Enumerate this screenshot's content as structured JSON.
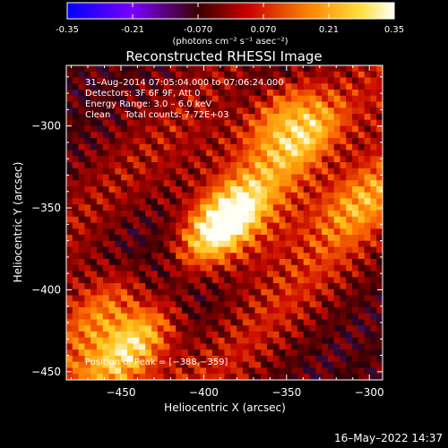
{
  "chart_data": {
    "type": "heatmap",
    "title": "Reconstructed RHESSI Image",
    "colorbar": {
      "min": -0.35,
      "max": 0.35,
      "tick_labels": [
        "-0.35",
        "-0.21",
        "-0.070",
        "0.070",
        "0.21",
        "0.35"
      ],
      "tick_values": [
        -0.35,
        -0.21,
        -0.07,
        0.07,
        0.21,
        0.35
      ],
      "unit_label": "(photons cm⁻² s⁻¹ asec⁻²)"
    },
    "xlabel": "Heliocentric X (arcsec)",
    "ylabel": "Heliocentric Y (arcsec)",
    "xlim": [
      -483,
      -292
    ],
    "ylim": [
      -455,
      -263
    ],
    "x_tick_values": [
      -450,
      -400,
      -350,
      -300
    ],
    "x_tick_labels": [
      "−450",
      "−400",
      "−350",
      "−300"
    ],
    "y_tick_values": [
      -300,
      -350,
      -400,
      -450
    ],
    "y_tick_labels": [
      "−300",
      "−350",
      "−400",
      "−450"
    ],
    "annotations": [
      "31–Aug–2014 07:05:04.000 to 07:06:24.000",
      "Detectors: 3F 6F 9F, Att 0",
      "Energy Range: 3.0 – 6.0 keV",
      "Clean     Total counts: 7.72E+03"
    ],
    "peak_label": "Position of Peak = [−388,−359]",
    "peak": [
      -388,
      -359
    ],
    "footer_date": "16–May–2022 14:37",
    "sources": [
      {
        "x": -388,
        "y": -359,
        "amp": 0.35
      },
      {
        "x": -338,
        "y": -305,
        "amp": 0.24
      },
      {
        "x": -353,
        "y": -290,
        "amp": 0.18
      },
      {
        "x": -443,
        "y": -433,
        "amp": 0.22
      },
      {
        "x": -460,
        "y": -410,
        "amp": 0.12
      },
      {
        "x": -305,
        "y": -345,
        "amp": 0.14
      }
    ]
  }
}
